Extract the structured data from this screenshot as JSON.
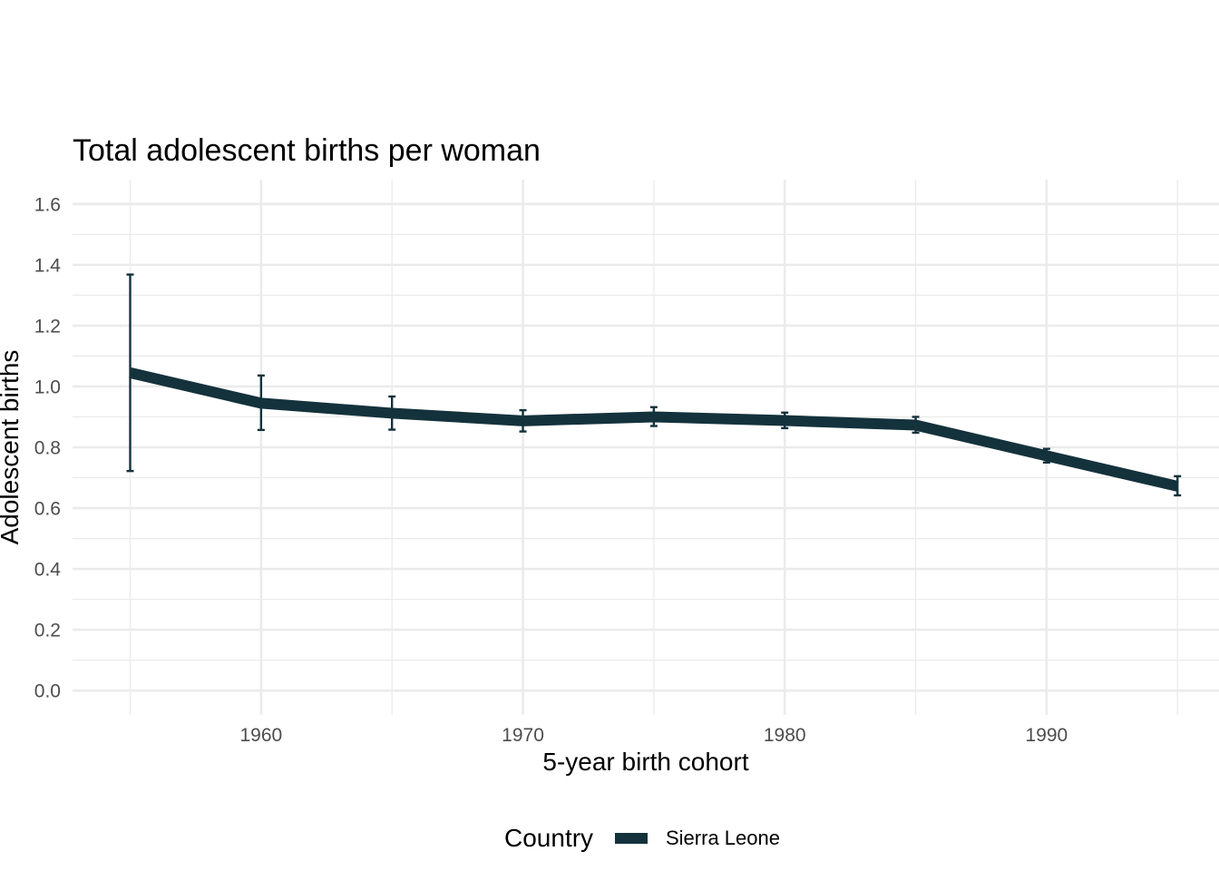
{
  "chart_data": {
    "type": "line",
    "title": "Total adolescent births per woman",
    "xlabel": "5-year birth cohort",
    "ylabel": "Adolescent births",
    "x_ticks": [
      1960,
      1970,
      1980,
      1990
    ],
    "x_tick_labels": [
      "1960",
      "1970",
      "1980",
      "1990"
    ],
    "y_ticks": [
      0.0,
      0.2,
      0.4,
      0.6,
      0.8,
      1.0,
      1.2,
      1.4,
      1.6
    ],
    "y_tick_labels": [
      "0.0",
      "0.2",
      "0.4",
      "0.6",
      "0.8",
      "1.0",
      "1.2",
      "1.4",
      "1.6"
    ],
    "xlim": [
      1952.8,
      1995.2
    ],
    "ylim": [
      -0.08,
      1.68
    ],
    "grid": true,
    "legend": {
      "title": "Country",
      "placement": "bottom"
    },
    "series": [
      {
        "name": "Sierra Leone",
        "color": "#14323c",
        "x": [
          1955,
          1960,
          1965,
          1970,
          1975,
          1980,
          1985,
          1990,
          1995
        ],
        "y": [
          1.045,
          0.945,
          0.912,
          0.887,
          0.9,
          0.888,
          0.873,
          0.772,
          0.672
        ],
        "lower": [
          0.722,
          0.857,
          0.858,
          0.852,
          0.87,
          0.863,
          0.848,
          0.75,
          0.642
        ],
        "upper": [
          1.368,
          1.036,
          0.967,
          0.922,
          0.932,
          0.914,
          0.9,
          0.795,
          0.705
        ]
      }
    ]
  }
}
